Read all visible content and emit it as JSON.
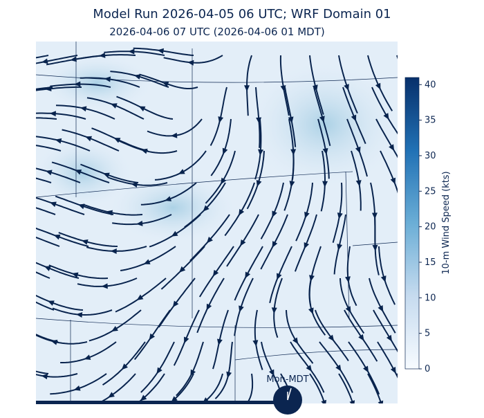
{
  "title": "Model Run 2026-04-05 06 UTC; WRF Domain 01",
  "subtitle": "2026-04-06 07 UTC  (2026-04-06 01 MDT)",
  "colorbar": {
    "label": "10-m Wind Speed (kts)",
    "lim": [
      0,
      41
    ],
    "ticks": [
      0,
      5,
      10,
      15,
      20,
      25,
      30,
      35,
      40
    ]
  },
  "clock": {
    "label": "Mon-MDT"
  }
}
